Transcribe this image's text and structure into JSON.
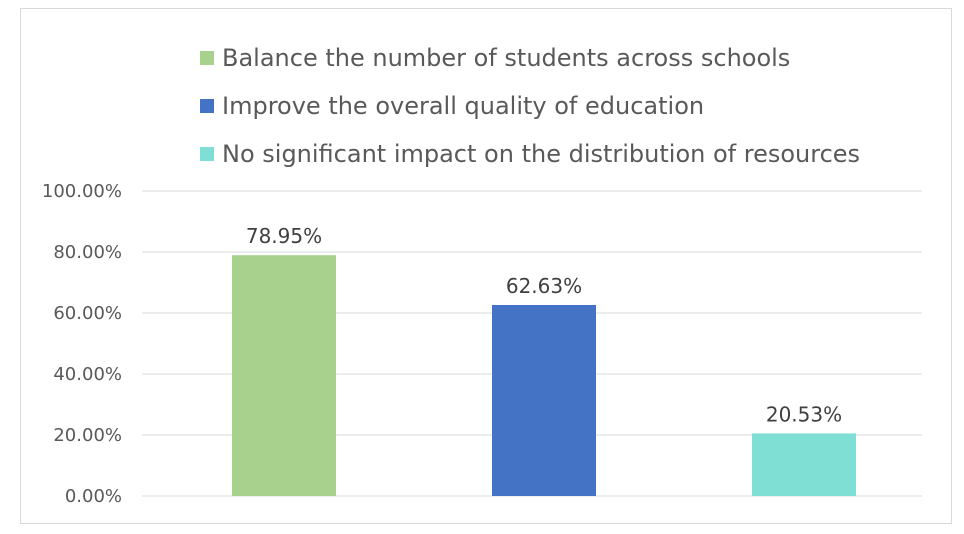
{
  "chart_data": {
    "type": "bar",
    "categories": [
      "Balance the number of students across schools",
      "Improve the overall quality of education",
      "No significant impact on the distribution of resources"
    ],
    "values": [
      78.95,
      62.63,
      20.53
    ],
    "data_labels": [
      "78.95%",
      "62.63%",
      "20.53%"
    ],
    "colors": [
      "#a9d18e",
      "#4472c4",
      "#7fdfd4"
    ],
    "ylim": [
      0,
      100
    ],
    "ytick_values": [
      0,
      20,
      40,
      60,
      80,
      100
    ],
    "ytick_labels": [
      "0.00%",
      "20.00%",
      "40.00%",
      "60.00%",
      "80.00%",
      "100.00%"
    ],
    "grid": true,
    "legend_position": "top",
    "title": "",
    "xlabel": "",
    "ylabel": ""
  }
}
